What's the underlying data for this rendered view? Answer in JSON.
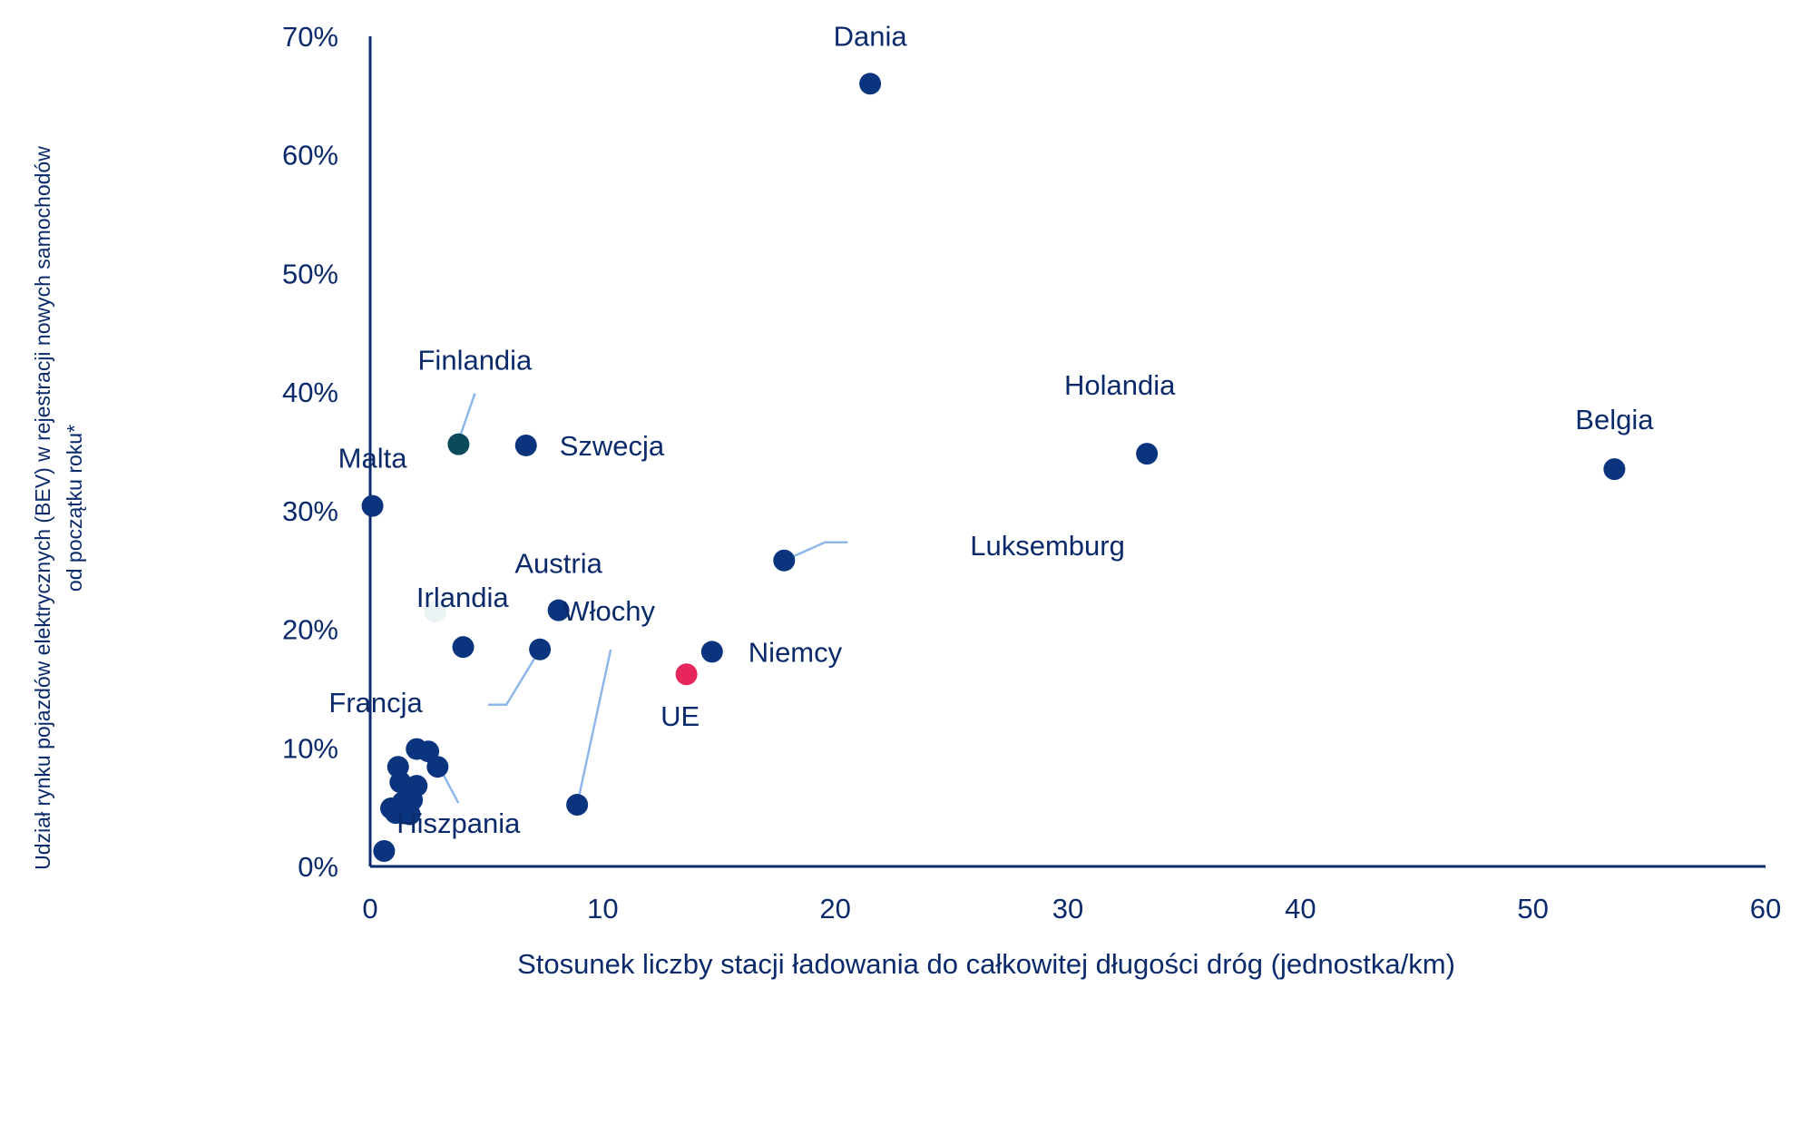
{
  "colors": {
    "text": "#0a2a6b",
    "axis": "#0a2a6b",
    "point": "#0a357e",
    "eu_point": "#e8265e",
    "finland_point": "#0b4a5a",
    "ireland_point": "#eaf3f3",
    "leader": "#8fb8ea"
  },
  "chart_data": {
    "type": "scatter",
    "title": "",
    "xlabel": "Stosunek liczby stacji ładowania do całkowitej długości dróg (jednostka/km)",
    "ylabel": "Udział rynku pojazdów elektrycznych (BEV) w rejestracji nowych samochodów od początku roku*",
    "ylabel_lines": [
      "Udział rynku pojazdów elektrycznych (BEV) w rejestracji nowych samochodów",
      "od początku roku*"
    ],
    "xlim": [
      0,
      60
    ],
    "ylim": [
      0,
      70
    ],
    "x_ticks": [
      0,
      10,
      20,
      30,
      40,
      50,
      60
    ],
    "y_ticks": [
      0,
      10,
      20,
      30,
      40,
      50,
      60,
      70
    ],
    "x_tick_labels": [
      "0",
      "10",
      "20",
      "30",
      "40",
      "50",
      "60"
    ],
    "y_tick_labels": [
      "0%",
      "10%",
      "20%",
      "30%",
      "40%",
      "50%",
      "60%",
      "70%"
    ],
    "grid": false,
    "legend": "none",
    "points": [
      {
        "label": "Dania",
        "x": 21.5,
        "y": 66.0,
        "color": "point"
      },
      {
        "label": "Belgia",
        "x": 53.5,
        "y": 33.5,
        "color": "point"
      },
      {
        "label": "Holandia",
        "x": 33.4,
        "y": 34.8,
        "color": "point"
      },
      {
        "label": "Luksemburg",
        "x": 17.8,
        "y": 25.8,
        "color": "point"
      },
      {
        "label": "Finlandia",
        "x": 3.8,
        "y": 35.6,
        "color": "finland_point"
      },
      {
        "label": "Szwecja",
        "x": 6.7,
        "y": 35.5,
        "color": "point"
      },
      {
        "label": "Malta",
        "x": 0.1,
        "y": 30.4,
        "color": "point"
      },
      {
        "label": "Austria",
        "x": 8.1,
        "y": 21.6,
        "color": "point"
      },
      {
        "label": "Irlandia",
        "x": 2.8,
        "y": 21.5,
        "color": "ireland_point"
      },
      {
        "label": "Francja",
        "x": 7.3,
        "y": 18.3,
        "color": "point"
      },
      {
        "label": "Niemcy",
        "x": 14.7,
        "y": 18.1,
        "color": "point"
      },
      {
        "label": "UE",
        "x": 13.6,
        "y": 16.2,
        "color": "eu_point"
      },
      {
        "label": "Włochy",
        "x": 8.9,
        "y": 5.2,
        "color": "point"
      },
      {
        "label": "Hiszpania",
        "x": 2.9,
        "y": 8.4,
        "color": "point"
      },
      {
        "label": "",
        "x": 4.0,
        "y": 18.5,
        "color": "point"
      },
      {
        "label": "",
        "x": 2.0,
        "y": 9.9,
        "color": "point"
      },
      {
        "label": "",
        "x": 2.5,
        "y": 9.7,
        "color": "point"
      },
      {
        "label": "",
        "x": 1.2,
        "y": 8.4,
        "color": "point"
      },
      {
        "label": "",
        "x": 1.3,
        "y": 7.1,
        "color": "point"
      },
      {
        "label": "",
        "x": 2.0,
        "y": 6.8,
        "color": "point"
      },
      {
        "label": "",
        "x": 1.8,
        "y": 5.6,
        "color": "point"
      },
      {
        "label": "",
        "x": 1.4,
        "y": 5.4,
        "color": "point"
      },
      {
        "label": "",
        "x": 0.9,
        "y": 4.9,
        "color": "point"
      },
      {
        "label": "",
        "x": 1.1,
        "y": 4.5,
        "color": "point"
      },
      {
        "label": "",
        "x": 1.7,
        "y": 4.4,
        "color": "point"
      },
      {
        "label": "",
        "x": 0.6,
        "y": 1.3,
        "color": "point"
      }
    ]
  }
}
